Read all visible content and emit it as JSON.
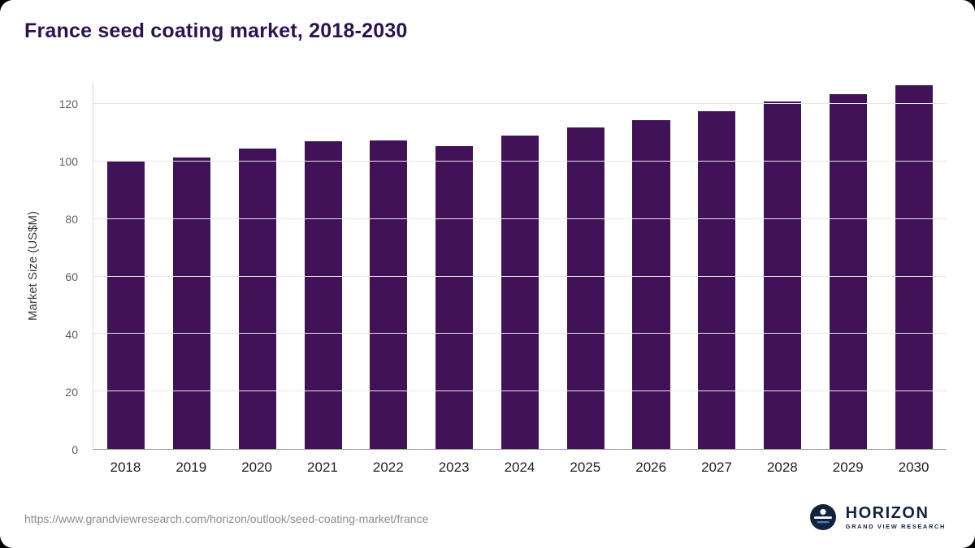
{
  "page": {
    "title": "France seed coating market, 2018-2030",
    "source_url": "https://www.grandviewresearch.com/horizon/outlook/seed-coating-market/france"
  },
  "logo": {
    "name": "HORIZON",
    "subtitle": "GRAND VIEW RESEARCH"
  },
  "colors": {
    "title": "#2c1250",
    "bar": "#411258",
    "logo_navy": "#13233f"
  },
  "chart_data": {
    "type": "bar",
    "title": "France seed coating market, 2018-2030",
    "categories": [
      "2018",
      "2019",
      "2020",
      "2021",
      "2022",
      "2023",
      "2024",
      "2025",
      "2026",
      "2027",
      "2028",
      "2029",
      "2030"
    ],
    "values": [
      100,
      101.5,
      104.5,
      107,
      107.5,
      105.5,
      109,
      112,
      114.5,
      117.5,
      121,
      123.5,
      126.5
    ],
    "xlabel": "",
    "ylabel": "Market Size (US$M)",
    "ylim": [
      0,
      128
    ],
    "yticks": [
      0,
      20,
      40,
      60,
      80,
      100,
      120
    ],
    "bar_color": "#411258",
    "grid": true,
    "legend": false
  }
}
